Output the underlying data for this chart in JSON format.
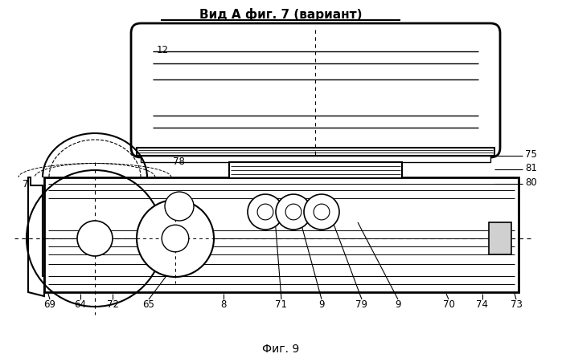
{
  "title_top": "Вид А фиг. 7 (вариант)",
  "title_bottom": "Фиг. 9",
  "bg_color": "#ffffff",
  "line_color": "#000000",
  "figsize": [
    6.99,
    4.52
  ],
  "dpi": 100,
  "label_fs": 8.5
}
